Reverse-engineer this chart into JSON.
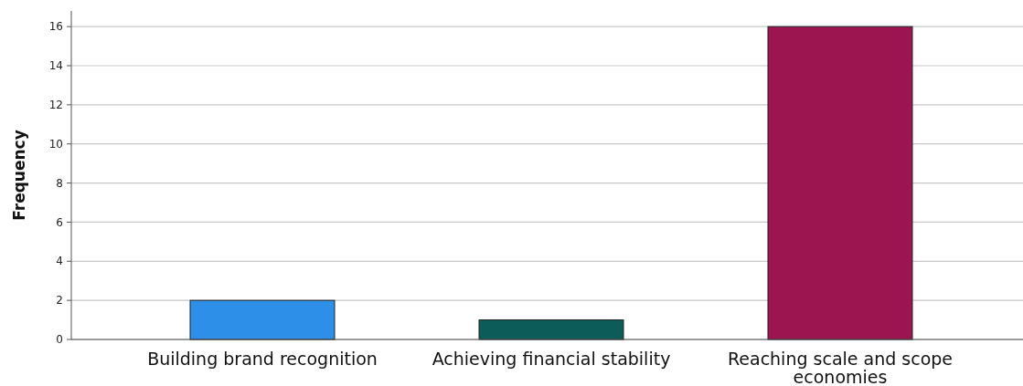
{
  "chart_data": {
    "type": "bar",
    "ylabel": "Frequency",
    "categories": [
      "Building brand recognition",
      "Achieving financial stability",
      "Reaching scale and scope economies"
    ],
    "values": [
      2,
      1,
      16
    ],
    "colors": [
      "#2e8fe8",
      "#0c5c5a",
      "#9c1550"
    ],
    "ylim": [
      0,
      16.8
    ],
    "yticks": [
      0,
      2,
      4,
      6,
      8,
      10,
      12,
      14,
      16
    ],
    "grid": "y"
  }
}
